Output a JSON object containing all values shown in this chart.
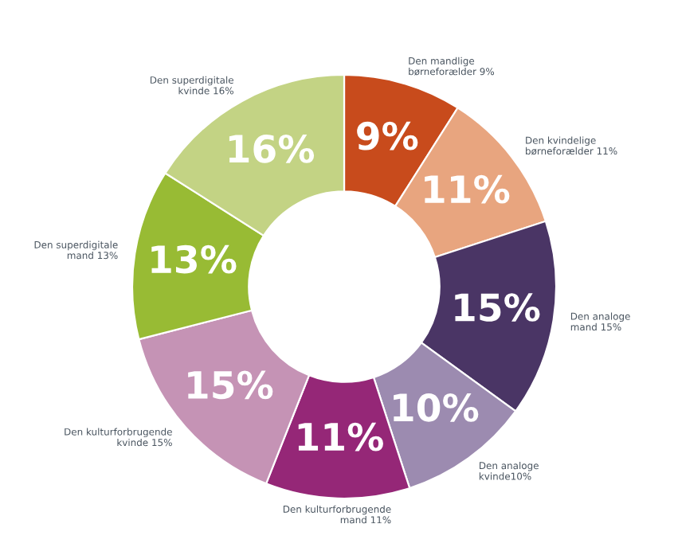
{
  "chart_data": {
    "type": "donut",
    "categories": [
      "Den mandlige\nbørneforælder 9%",
      "Den kvindelige\nbørneforælder 11%",
      "Den analoge\nmand 15%",
      "Den analoge\nkvinde10%",
      "Den kulturforbrugende\nmand 11%",
      "Den kulturforbrugende\nkvinde 15%",
      "Den superdigitale\nmand 13%",
      "Den superdigitale\nkvinde 16%"
    ],
    "values": [
      9,
      11,
      15,
      10,
      11,
      15,
      13,
      16
    ],
    "value_labels": [
      "9%",
      "11%",
      "15%",
      "10%",
      "11%",
      "15%",
      "13%",
      "16%"
    ],
    "colors": [
      "#c84b1c",
      "#e8a57f",
      "#4a3565",
      "#9c8bb0",
      "#952777",
      "#c593b5",
      "#98bb34",
      "#c3d384"
    ],
    "legend": false
  }
}
